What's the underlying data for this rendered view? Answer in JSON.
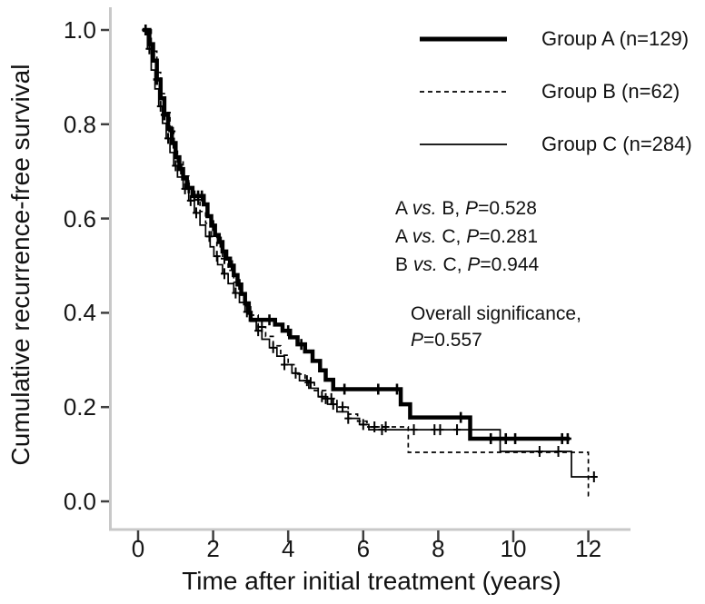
{
  "chart_data": {
    "type": "line",
    "subtype": "kaplan-meier-step-curves",
    "title": "",
    "xlabel": "Time after initial treatment (years)",
    "ylabel": "Cumulative recurrence-free survival",
    "xlim": [
      0,
      13.1
    ],
    "ylim": [
      0,
      1.05
    ],
    "xticks": [
      0,
      2,
      4,
      6,
      8,
      10,
      12
    ],
    "xtick_labels": [
      "0",
      "2",
      "4",
      "6",
      "8",
      "10",
      "12"
    ],
    "yticks": [
      0.0,
      0.2,
      0.4,
      0.6,
      0.8,
      1.0
    ],
    "ytick_labels": [
      "0.0",
      "0.2",
      "0.4",
      "0.6",
      "0.8",
      "1.0"
    ],
    "grid": false,
    "legend_position": "top-right",
    "axis_color": "#c8c8c8",
    "tick_color": "#3f3f3f",
    "text_color": "#111111",
    "series": [
      {
        "id": "group-a",
        "name": "Group A (n=129)",
        "color": "#000000",
        "line_style": "thick-solid",
        "stroke_width": 4.5,
        "dash": "",
        "end_time": 11.5,
        "steps": [
          [
            0.12,
            1.0
          ],
          [
            0.3,
            0.97
          ],
          [
            0.4,
            0.935
          ],
          [
            0.5,
            0.895
          ],
          [
            0.6,
            0.855
          ],
          [
            0.7,
            0.82
          ],
          [
            0.8,
            0.79
          ],
          [
            0.9,
            0.76
          ],
          [
            1.0,
            0.73
          ],
          [
            1.1,
            0.705
          ],
          [
            1.2,
            0.685
          ],
          [
            1.3,
            0.665
          ],
          [
            1.45,
            0.648
          ],
          [
            1.75,
            0.63
          ],
          [
            1.85,
            0.605
          ],
          [
            1.95,
            0.585
          ],
          [
            2.05,
            0.565
          ],
          [
            2.15,
            0.55
          ],
          [
            2.25,
            0.53
          ],
          [
            2.35,
            0.515
          ],
          [
            2.45,
            0.5
          ],
          [
            2.55,
            0.48
          ],
          [
            2.65,
            0.46
          ],
          [
            2.75,
            0.44
          ],
          [
            2.85,
            0.42
          ],
          [
            2.95,
            0.4
          ],
          [
            3.0,
            0.385
          ],
          [
            3.65,
            0.375
          ],
          [
            3.85,
            0.362
          ],
          [
            4.05,
            0.348
          ],
          [
            4.25,
            0.333
          ],
          [
            4.45,
            0.318
          ],
          [
            4.65,
            0.298
          ],
          [
            4.85,
            0.278
          ],
          [
            5.0,
            0.258
          ],
          [
            5.2,
            0.238
          ],
          [
            7.0,
            0.206
          ],
          [
            7.25,
            0.178
          ],
          [
            8.85,
            0.133
          ]
        ],
        "censor_times": [
          0.2,
          0.5,
          0.7,
          0.95,
          1.15,
          1.35,
          1.5,
          1.6,
          1.7,
          2.0,
          2.2,
          2.5,
          2.7,
          3.5,
          4.0,
          4.35,
          5.5,
          6.4,
          6.9,
          8.6,
          9.4,
          9.8,
          10.05,
          11.3,
          11.45
        ]
      },
      {
        "id": "group-b",
        "name": "Group B (n=62)",
        "color": "#000000",
        "line_style": "dashed",
        "stroke_width": 1.7,
        "dash": "5 4",
        "end_time": 12.05,
        "steps": [
          [
            0.12,
            1.0
          ],
          [
            0.35,
            0.955
          ],
          [
            0.5,
            0.91
          ],
          [
            0.6,
            0.865
          ],
          [
            0.7,
            0.825
          ],
          [
            0.85,
            0.785
          ],
          [
            0.95,
            0.75
          ],
          [
            1.05,
            0.72
          ],
          [
            1.2,
            0.69
          ],
          [
            1.35,
            0.665
          ],
          [
            1.5,
            0.64
          ],
          [
            1.65,
            0.615
          ],
          [
            1.8,
            0.59
          ],
          [
            1.95,
            0.565
          ],
          [
            2.1,
            0.54
          ],
          [
            2.25,
            0.515
          ],
          [
            2.4,
            0.49
          ],
          [
            2.55,
            0.465
          ],
          [
            2.7,
            0.44
          ],
          [
            2.85,
            0.415
          ],
          [
            3.0,
            0.395
          ],
          [
            3.2,
            0.37
          ],
          [
            3.4,
            0.35
          ],
          [
            3.6,
            0.33
          ],
          [
            3.8,
            0.31
          ],
          [
            4.0,
            0.29
          ],
          [
            4.2,
            0.27
          ],
          [
            4.45,
            0.252
          ],
          [
            4.7,
            0.235
          ],
          [
            5.0,
            0.218
          ],
          [
            5.3,
            0.2
          ],
          [
            5.6,
            0.185
          ],
          [
            5.85,
            0.17
          ],
          [
            6.1,
            0.158
          ],
          [
            7.2,
            0.104
          ],
          [
            12.0,
            0.012
          ]
        ],
        "censor_times": [
          0.9,
          1.6,
          2.3,
          3.3,
          4.6,
          5.0,
          5.15,
          5.45,
          6.3,
          6.6
        ]
      },
      {
        "id": "group-c",
        "name": "Group C (n=284)",
        "color": "#000000",
        "line_style": "thin-solid",
        "stroke_width": 1.7,
        "dash": "",
        "end_time": 12.2,
        "steps": [
          [
            0.12,
            1.0
          ],
          [
            0.25,
            0.96
          ],
          [
            0.35,
            0.915
          ],
          [
            0.45,
            0.875
          ],
          [
            0.55,
            0.838
          ],
          [
            0.65,
            0.802
          ],
          [
            0.75,
            0.77
          ],
          [
            0.85,
            0.74
          ],
          [
            0.95,
            0.712
          ],
          [
            1.05,
            0.688
          ],
          [
            1.2,
            0.663
          ],
          [
            1.35,
            0.638
          ],
          [
            1.5,
            0.612
          ],
          [
            1.65,
            0.586
          ],
          [
            1.8,
            0.562
          ],
          [
            1.92,
            0.54
          ],
          [
            2.02,
            0.52
          ],
          [
            2.12,
            0.502
          ],
          [
            2.25,
            0.483
          ],
          [
            2.4,
            0.462
          ],
          [
            2.55,
            0.442
          ],
          [
            2.7,
            0.422
          ],
          [
            2.85,
            0.402
          ],
          [
            3.0,
            0.382
          ],
          [
            3.15,
            0.362
          ],
          [
            3.3,
            0.344
          ],
          [
            3.5,
            0.326
          ],
          [
            3.7,
            0.308
          ],
          [
            3.9,
            0.29
          ],
          [
            4.1,
            0.272
          ],
          [
            4.3,
            0.256
          ],
          [
            4.55,
            0.24
          ],
          [
            4.8,
            0.222
          ],
          [
            5.05,
            0.206
          ],
          [
            5.3,
            0.19
          ],
          [
            5.6,
            0.176
          ],
          [
            5.9,
            0.163
          ],
          [
            6.15,
            0.152
          ],
          [
            9.65,
            0.106
          ],
          [
            11.55,
            0.052
          ]
        ],
        "censor_times": [
          0.3,
          0.6,
          0.8,
          1.0,
          1.25,
          1.4,
          1.55,
          1.9,
          2.1,
          2.3,
          2.6,
          2.9,
          3.2,
          3.6,
          3.9,
          4.2,
          4.5,
          4.9,
          5.2,
          5.6,
          6.0,
          6.5,
          7.35,
          7.9,
          8.05,
          8.5,
          10.7,
          11.2,
          12.15
        ]
      }
    ]
  },
  "stats": {
    "comparisons": [
      {
        "a": "A",
        "b": "B",
        "p": "0.528"
      },
      {
        "a": "A",
        "b": "C",
        "p": "0.281"
      },
      {
        "a": "B",
        "b": "C",
        "p": "0.944"
      }
    ],
    "overall": {
      "line1": "Overall significance,",
      "p": "0.557"
    }
  }
}
